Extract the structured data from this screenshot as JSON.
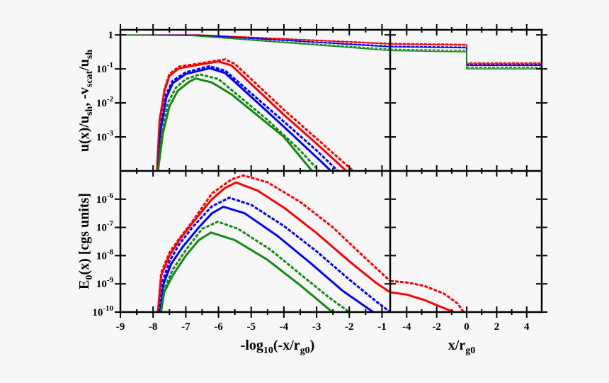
{
  "chart_data": {
    "type": "line",
    "layout": "2x2 panels (shared axes)",
    "colors": {
      "red": "#ff0000",
      "blue": "#0000ff",
      "green": "#138a13"
    },
    "x_left": {
      "label_parts": [
        "-log",
        "10",
        "(-x/r",
        "g0",
        ")"
      ],
      "range": [
        -9,
        -0.75
      ],
      "ticks": [
        -9,
        -8,
        -7,
        -6,
        -5,
        -4,
        -3,
        -2,
        -1
      ]
    },
    "x_right": {
      "label_parts": [
        "x/r",
        "g0"
      ],
      "range": [
        -5.1,
        5
      ],
      "ticks": [
        -4,
        -2,
        0,
        2,
        4
      ]
    },
    "y_top": {
      "label_parts": [
        "u(x)/u",
        "sh",
        ", -v",
        "scat",
        "/u",
        "sh"
      ],
      "scale": "log",
      "range_log10": [
        -4,
        0.15
      ],
      "ticks": [
        {
          "log": 0,
          "base": "1",
          "exp": ""
        },
        {
          "log": -1,
          "base": "10",
          "exp": "-1"
        },
        {
          "log": -2,
          "base": "10",
          "exp": "-2"
        },
        {
          "log": -3,
          "base": "10",
          "exp": "-3"
        }
      ]
    },
    "y_bottom": {
      "label_parts": [
        "E",
        "0",
        "(x) [cgs units]"
      ],
      "scale": "log",
      "range_log10": [
        -10,
        -5
      ],
      "ticks": [
        {
          "log": -6,
          "base": "10",
          "exp": "-6"
        },
        {
          "log": -7,
          "base": "10",
          "exp": "-7"
        },
        {
          "log": -8,
          "base": "10",
          "exp": "-8"
        },
        {
          "log": -9,
          "base": "10",
          "exp": "-9"
        },
        {
          "log": -10,
          "base": "10",
          "exp": "-10"
        }
      ]
    },
    "series_top_left": [
      {
        "name": "u-red",
        "color": "red",
        "dash": false,
        "thin": true,
        "points": [
          [
            -9,
            0
          ],
          [
            -6.6,
            0
          ],
          [
            -0.75,
            -0.27
          ]
        ]
      },
      {
        "name": "u-red-dashed",
        "color": "red",
        "dash": true,
        "thin": true,
        "points": [
          [
            -9,
            0
          ],
          [
            -6.6,
            0
          ],
          [
            -0.75,
            -0.25
          ]
        ]
      },
      {
        "name": "u-blue",
        "color": "blue",
        "dash": false,
        "thin": true,
        "points": [
          [
            -9,
            0
          ],
          [
            -6.6,
            -0.01
          ],
          [
            -0.75,
            -0.35
          ]
        ]
      },
      {
        "name": "u-blue-dashed",
        "color": "blue",
        "dash": true,
        "thin": true,
        "points": [
          [
            -9,
            0
          ],
          [
            -6.6,
            -0.01
          ],
          [
            -0.75,
            -0.33
          ]
        ]
      },
      {
        "name": "u-green",
        "color": "green",
        "dash": false,
        "thin": true,
        "points": [
          [
            -9,
            0
          ],
          [
            -6.8,
            -0.02
          ],
          [
            -0.75,
            -0.46
          ]
        ]
      },
      {
        "name": "u-green-dashed",
        "color": "green",
        "dash": true,
        "thin": true,
        "points": [
          [
            -9,
            0
          ],
          [
            -6.8,
            -0.02
          ],
          [
            -0.75,
            -0.42
          ]
        ]
      },
      {
        "name": "vscat-red-dashed",
        "color": "red",
        "dash": true,
        "points": [
          [
            -7.85,
            -4
          ],
          [
            -7.78,
            -2.5
          ],
          [
            -7.65,
            -1.6
          ],
          [
            -7.5,
            -1.15
          ],
          [
            -7.2,
            -0.93
          ],
          [
            -6.5,
            -0.83
          ],
          [
            -5.8,
            -0.72
          ],
          [
            -5.5,
            -0.85
          ],
          [
            -4,
            -2.2
          ],
          [
            -3,
            -3.05
          ],
          [
            -1.88,
            -4
          ]
        ]
      },
      {
        "name": "vscat-red",
        "color": "red",
        "dash": false,
        "points": [
          [
            -7.88,
            -4
          ],
          [
            -7.8,
            -2.5
          ],
          [
            -7.65,
            -1.65
          ],
          [
            -7.5,
            -1.2
          ],
          [
            -7.2,
            -0.98
          ],
          [
            -6.5,
            -0.86
          ],
          [
            -6.0,
            -0.78
          ],
          [
            -5.6,
            -0.9
          ],
          [
            -4,
            -2.35
          ],
          [
            -3,
            -3.2
          ],
          [
            -2.09,
            -4
          ]
        ]
      },
      {
        "name": "vscat-blue-dashed",
        "color": "blue",
        "dash": true,
        "points": [
          [
            -7.85,
            -4
          ],
          [
            -7.75,
            -2.6
          ],
          [
            -7.6,
            -1.75
          ],
          [
            -7.4,
            -1.35
          ],
          [
            -7.0,
            -1.1
          ],
          [
            -6.27,
            -0.92
          ],
          [
            -5.8,
            -1.05
          ],
          [
            -4,
            -2.55
          ],
          [
            -3,
            -3.4
          ],
          [
            -2.35,
            -4
          ]
        ]
      },
      {
        "name": "vscat-blue",
        "color": "blue",
        "dash": false,
        "points": [
          [
            -7.85,
            -4
          ],
          [
            -7.75,
            -2.7
          ],
          [
            -7.6,
            -1.85
          ],
          [
            -7.4,
            -1.42
          ],
          [
            -7.0,
            -1.15
          ],
          [
            -6.27,
            -0.98
          ],
          [
            -5.8,
            -1.12
          ],
          [
            -4,
            -2.7
          ],
          [
            -3,
            -3.6
          ],
          [
            -2.56,
            -4
          ]
        ]
      },
      {
        "name": "vscat-green-dashed",
        "color": "green",
        "dash": true,
        "points": [
          [
            -7.85,
            -4
          ],
          [
            -7.72,
            -2.8
          ],
          [
            -7.55,
            -2.0
          ],
          [
            -7.3,
            -1.55
          ],
          [
            -7.0,
            -1.3
          ],
          [
            -6.57,
            -1.16
          ],
          [
            -6.0,
            -1.3
          ],
          [
            -4.5,
            -2.5
          ],
          [
            -3.5,
            -3.4
          ],
          [
            -2.93,
            -4
          ]
        ]
      },
      {
        "name": "vscat-green",
        "color": "green",
        "dash": false,
        "points": [
          [
            -7.85,
            -4
          ],
          [
            -7.7,
            -2.9
          ],
          [
            -7.5,
            -2.1
          ],
          [
            -7.25,
            -1.65
          ],
          [
            -6.9,
            -1.38
          ],
          [
            -6.7,
            -1.28
          ],
          [
            -6.2,
            -1.4
          ],
          [
            -5.6,
            -1.75
          ],
          [
            -4,
            -3.0
          ],
          [
            -3.14,
            -4
          ]
        ]
      }
    ],
    "series_top_right": [
      {
        "name": "u-red",
        "color": "red",
        "dash": false,
        "thin": true,
        "points": [
          [
            -5.1,
            -0.27
          ],
          [
            0,
            -0.3
          ],
          [
            0,
            -0.85
          ],
          [
            5,
            -0.85
          ]
        ]
      },
      {
        "name": "u-red-dashed",
        "color": "red",
        "dash": true,
        "thin": true,
        "points": [
          [
            -5.1,
            -0.25
          ],
          [
            0,
            -0.28
          ],
          [
            0,
            -0.82
          ],
          [
            5,
            -0.82
          ]
        ]
      },
      {
        "name": "u-blue",
        "color": "blue",
        "dash": false,
        "thin": true,
        "points": [
          [
            -5.1,
            -0.35
          ],
          [
            0,
            -0.38
          ],
          [
            0,
            -0.9
          ],
          [
            5,
            -0.9
          ]
        ]
      },
      {
        "name": "u-blue-dashed",
        "color": "blue",
        "dash": true,
        "thin": true,
        "points": [
          [
            -5.1,
            -0.33
          ],
          [
            0,
            -0.36
          ],
          [
            0,
            -0.88
          ],
          [
            5,
            -0.88
          ]
        ]
      },
      {
        "name": "u-green",
        "color": "green",
        "dash": false,
        "thin": true,
        "points": [
          [
            -5.1,
            -0.46
          ],
          [
            0,
            -0.5
          ],
          [
            0,
            -1.0
          ],
          [
            5,
            -1.0
          ]
        ]
      },
      {
        "name": "u-green-dashed",
        "color": "green",
        "dash": true,
        "thin": true,
        "points": [
          [
            -5.1,
            -0.42
          ],
          [
            0,
            -0.46
          ],
          [
            0,
            -0.96
          ],
          [
            5,
            -0.96
          ]
        ]
      }
    ],
    "series_bottom_left": [
      {
        "name": "E0-red-dashed",
        "color": "red",
        "dash": true,
        "points": [
          [
            -7.85,
            -10
          ],
          [
            -7.75,
            -8.6
          ],
          [
            -7.5,
            -7.9
          ],
          [
            -7.2,
            -7.4
          ],
          [
            -6.8,
            -6.8
          ],
          [
            -6.2,
            -5.8
          ],
          [
            -5.6,
            -5.3
          ],
          [
            -5.24,
            -5.16
          ],
          [
            -4.5,
            -5.4
          ],
          [
            -3.5,
            -6.1
          ],
          [
            -2.5,
            -7.0
          ],
          [
            -1.5,
            -8.1
          ],
          [
            -0.75,
            -8.9
          ]
        ]
      },
      {
        "name": "E0-red",
        "color": "red",
        "dash": false,
        "points": [
          [
            -7.85,
            -10
          ],
          [
            -7.75,
            -8.7
          ],
          [
            -7.5,
            -8.0
          ],
          [
            -7.2,
            -7.45
          ],
          [
            -6.8,
            -6.85
          ],
          [
            -6.2,
            -6.0
          ],
          [
            -5.8,
            -5.6
          ],
          [
            -5.46,
            -5.41
          ],
          [
            -4.8,
            -5.7
          ],
          [
            -4,
            -6.3
          ],
          [
            -3,
            -7.2
          ],
          [
            -2,
            -8.2
          ],
          [
            -1.2,
            -8.95
          ],
          [
            -0.75,
            -9.3
          ]
        ]
      },
      {
        "name": "E0-blue-dashed",
        "color": "blue",
        "dash": true,
        "points": [
          [
            -7.8,
            -10
          ],
          [
            -7.7,
            -8.9
          ],
          [
            -7.5,
            -8.2
          ],
          [
            -7.2,
            -7.6
          ],
          [
            -6.8,
            -7.0
          ],
          [
            -6.2,
            -6.25
          ],
          [
            -5.67,
            -5.95
          ],
          [
            -5,
            -6.2
          ],
          [
            -4,
            -6.95
          ],
          [
            -3,
            -7.85
          ],
          [
            -2,
            -8.85
          ],
          [
            -1.2,
            -9.6
          ],
          [
            -0.75,
            -10
          ]
        ]
      },
      {
        "name": "E0-blue",
        "color": "blue",
        "dash": false,
        "points": [
          [
            -7.78,
            -10
          ],
          [
            -7.68,
            -9.0
          ],
          [
            -7.45,
            -8.3
          ],
          [
            -7.1,
            -7.7
          ],
          [
            -6.6,
            -7.0
          ],
          [
            -6.2,
            -6.5
          ],
          [
            -5.85,
            -6.27
          ],
          [
            -5.2,
            -6.5
          ],
          [
            -4.2,
            -7.3
          ],
          [
            -3.2,
            -8.25
          ],
          [
            -2.2,
            -9.25
          ],
          [
            -1.27,
            -10
          ]
        ]
      },
      {
        "name": "E0-green-dashed",
        "color": "green",
        "dash": true,
        "points": [
          [
            -7.76,
            -10
          ],
          [
            -7.66,
            -9.2
          ],
          [
            -7.4,
            -8.5
          ],
          [
            -7.0,
            -7.8
          ],
          [
            -6.5,
            -7.05
          ],
          [
            -6.02,
            -6.8
          ],
          [
            -5.4,
            -7.05
          ],
          [
            -4.4,
            -7.8
          ],
          [
            -3.4,
            -8.75
          ],
          [
            -2.6,
            -9.5
          ],
          [
            -2.0,
            -10
          ]
        ]
      },
      {
        "name": "E0-green",
        "color": "green",
        "dash": false,
        "points": [
          [
            -7.76,
            -10
          ],
          [
            -7.66,
            -9.3
          ],
          [
            -7.4,
            -8.7
          ],
          [
            -7.0,
            -8.0
          ],
          [
            -6.6,
            -7.45
          ],
          [
            -6.23,
            -7.18
          ],
          [
            -5.5,
            -7.45
          ],
          [
            -4.5,
            -8.15
          ],
          [
            -3.5,
            -9.05
          ],
          [
            -2.52,
            -10
          ]
        ]
      }
    ],
    "series_bottom_right": [
      {
        "name": "E0-red-dashed",
        "color": "red",
        "dash": true,
        "points": [
          [
            -5.1,
            -8.9
          ],
          [
            -4,
            -8.95
          ],
          [
            -2.83,
            -9.07
          ],
          [
            -1.5,
            -9.35
          ],
          [
            -0.6,
            -9.7
          ],
          [
            -0.2,
            -10
          ]
        ]
      },
      {
        "name": "E0-red",
        "color": "red",
        "dash": false,
        "points": [
          [
            -5.1,
            -9.3
          ],
          [
            -4,
            -9.38
          ],
          [
            -2.83,
            -9.57
          ],
          [
            -1.8,
            -9.8
          ],
          [
            -0.85,
            -10
          ]
        ]
      }
    ]
  }
}
